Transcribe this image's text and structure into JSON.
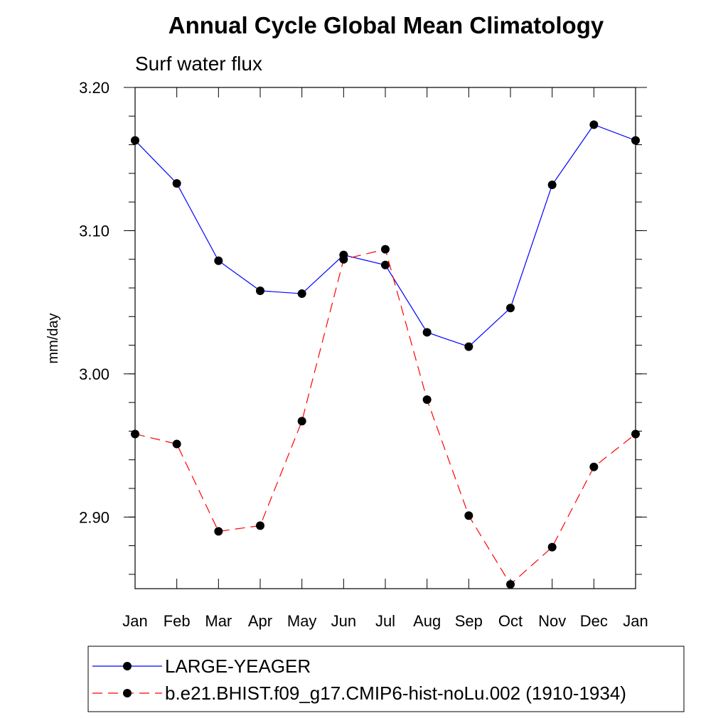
{
  "chart_data": {
    "type": "line",
    "title": "Annual Cycle Global Mean Climatology",
    "subtitle": "Surf water flux",
    "xlabel": "",
    "ylabel": "mm/day",
    "categories": [
      "Jan",
      "Feb",
      "Mar",
      "Apr",
      "May",
      "Jun",
      "Jul",
      "Aug",
      "Sep",
      "Oct",
      "Nov",
      "Dec",
      "Jan"
    ],
    "ylim": [
      2.85,
      3.2
    ],
    "yticks": [
      2.9,
      3.0,
      3.1,
      3.2
    ],
    "ytick_labels": [
      "2.90",
      "3.00",
      "3.10",
      "3.20"
    ],
    "series": [
      {
        "name": "LARGE-YEAGER",
        "color": "#0000ff",
        "dash": "solid",
        "marker": "circle",
        "values": [
          3.163,
          3.133,
          3.079,
          3.058,
          3.056,
          3.083,
          3.076,
          3.029,
          3.019,
          3.046,
          3.132,
          3.174,
          3.163
        ]
      },
      {
        "name": "b.e21.BHIST.f09_g17.CMIP6-hist-noLu.002 (1910-1934)",
        "color": "#ff0000",
        "dash": "dashed",
        "marker": "circle",
        "values": [
          2.958,
          2.951,
          2.89,
          2.894,
          2.967,
          3.08,
          3.087,
          2.982,
          2.901,
          2.853,
          2.879,
          2.935,
          2.958
        ]
      }
    ],
    "legend_position": "bottom"
  }
}
